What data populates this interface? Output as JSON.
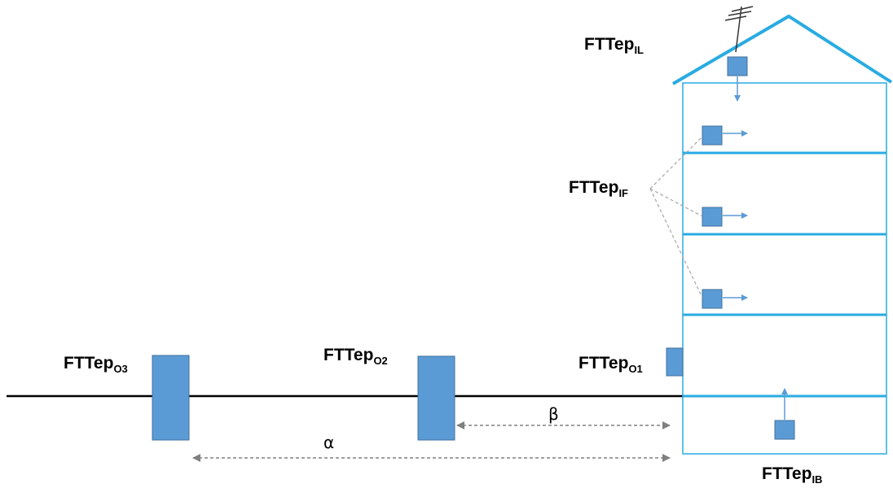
{
  "colors": {
    "structure": "#29abe2",
    "box_fill": "#5b9bd5",
    "box_stroke": "#41719c",
    "arrow": "#5b9bd5",
    "ground": "#000000",
    "dashed": "#a6a6a6",
    "dimension": "#808080"
  },
  "labels": {
    "il": {
      "base": "FTTep",
      "sub": "IL"
    },
    "if": {
      "base": "FTTep",
      "sub": "IF"
    },
    "o1": {
      "base": "FTTep",
      "sub": "O1"
    },
    "o2": {
      "base": "FTTep",
      "sub": "O2"
    },
    "o3": {
      "base": "FTTep",
      "sub": "O3"
    },
    "ib": {
      "base": "FTTep",
      "sub": "IB"
    }
  },
  "dimensions": {
    "alpha": "α",
    "beta": "β"
  },
  "icons": {
    "antenna": "antenna-icon"
  }
}
